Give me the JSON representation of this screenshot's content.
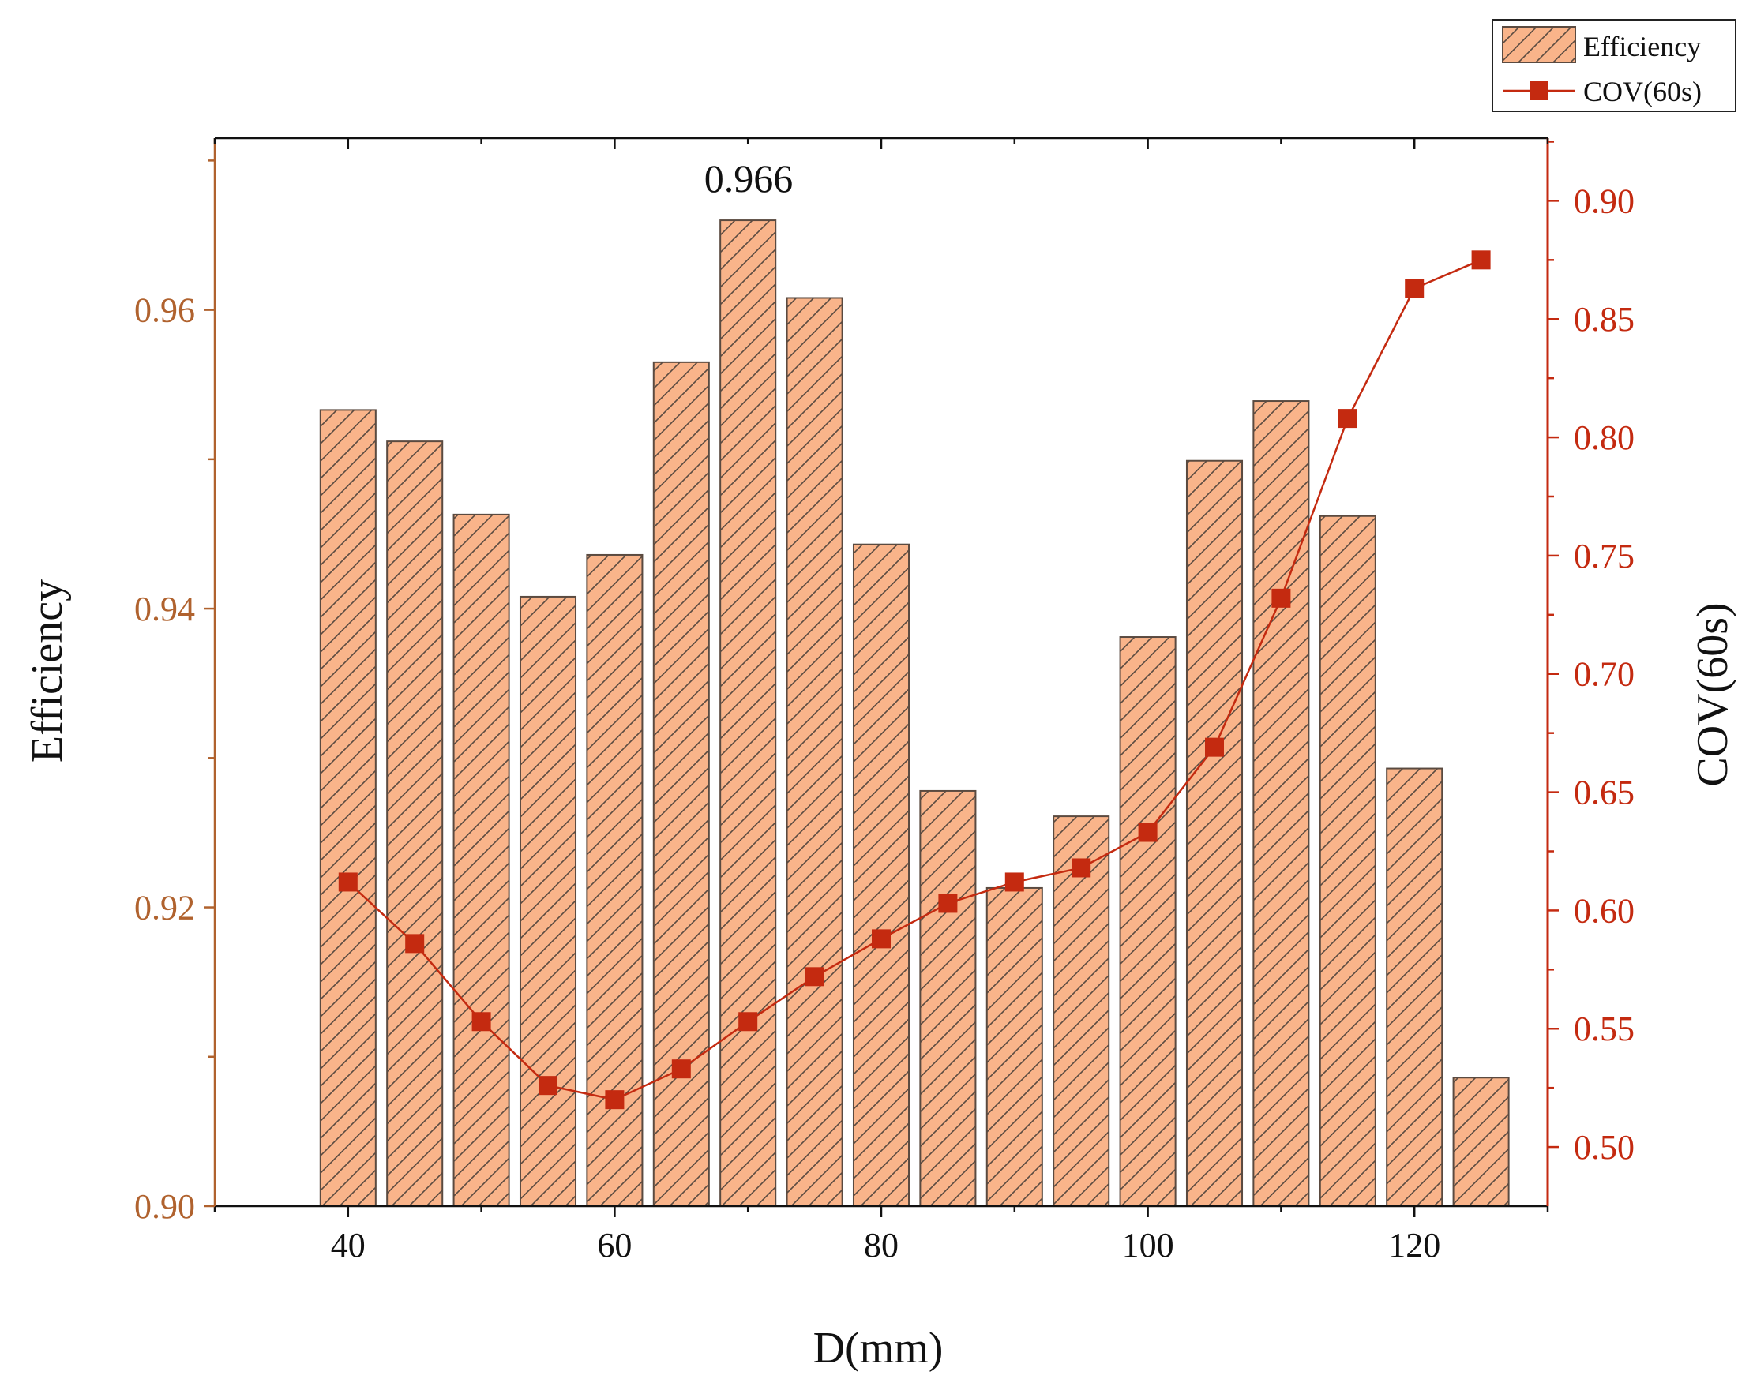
{
  "chart_data": {
    "type": "bar+line",
    "x": [
      40,
      45,
      50,
      55,
      60,
      65,
      70,
      75,
      80,
      85,
      90,
      95,
      100,
      105,
      110,
      115,
      120,
      125
    ],
    "series": [
      {
        "name": "Efficiency",
        "kind": "bar",
        "axis": "left",
        "values": [
          0.9533,
          0.9512,
          0.9463,
          0.9408,
          0.9436,
          0.9565,
          0.966,
          0.9608,
          0.9443,
          0.9278,
          0.9213,
          0.9261,
          0.9381,
          0.9499,
          0.9539,
          0.9462,
          0.9293,
          0.9086
        ]
      },
      {
        "name": "COV(60s)",
        "kind": "line",
        "axis": "right",
        "values": [
          0.612,
          0.586,
          0.553,
          0.526,
          0.52,
          0.533,
          0.553,
          0.572,
          0.588,
          0.603,
          0.612,
          0.618,
          0.633,
          0.669,
          0.732,
          0.808,
          0.863,
          0.875
        ]
      }
    ],
    "annotation": {
      "text": "0.966",
      "x": 70
    },
    "xlabel": "D(mm)",
    "ylabel_left": "Efficiency",
    "ylabel_right": "COV(60s)",
    "xlim": [
      30,
      130
    ],
    "xticks": [
      40,
      60,
      80,
      100,
      120
    ],
    "xtick_labels": [
      "40",
      "60",
      "80",
      "100",
      "120"
    ],
    "ylim_left": [
      0.9,
      0.9715
    ],
    "yticks_left": [
      0.9,
      0.92,
      0.94,
      0.96
    ],
    "ytick_labels_left": [
      "0.90",
      "0.92",
      "0.94",
      "0.96"
    ],
    "ylim_right": [
      0.475,
      0.9265
    ],
    "yticks_right": [
      0.5,
      0.55,
      0.6,
      0.65,
      0.7,
      0.75,
      0.8,
      0.85,
      0.9
    ],
    "ytick_labels_right": [
      "0.50",
      "0.55",
      "0.60",
      "0.65",
      "0.70",
      "0.75",
      "0.80",
      "0.85",
      "0.90"
    ],
    "legend": {
      "position": "top-right",
      "entries": [
        "Efficiency",
        "COV(60s)"
      ]
    },
    "grid": false
  },
  "colors": {
    "bar_fill": "#f9b48a",
    "bar_stroke": "#5a4a40",
    "hatch": "#5a4a40",
    "line": "#c42a10",
    "left_axis": "#b0622e",
    "right_axis": "#c42a10",
    "axis": "#111111",
    "text": "#111111"
  }
}
